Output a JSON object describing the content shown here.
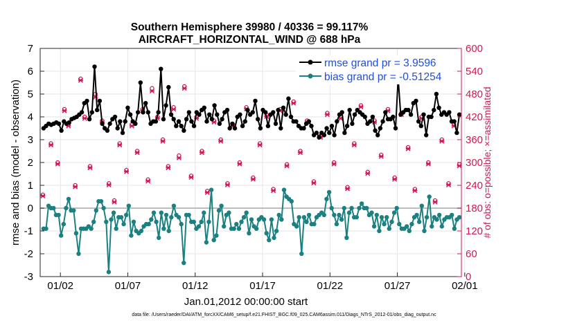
{
  "chart_data": {
    "type": "line",
    "title_line1": "Southern Hemisphere 39980 / 40336 = 99.117%",
    "title_line2": "AIRCRAFT_HORIZONTAL_WIND @ 688 hPa",
    "ylabel_left": "rmse and bias (model - observation)",
    "ylabel_right": "# of obs: o=possible; ×=assimilated",
    "xlabel": "Jan.01,2012 00:00:00 start",
    "footer": "data file: /Users/raeder/DAI/ATM_forcXX/CAM6_setup/f.e21.FHIST_BGC.f09_025.CAM6assim.011/Diags_NTrS_2012-01/obs_diag_output.nc",
    "ylim_left": [
      -3,
      7
    ],
    "yticks_left": [
      "-3",
      "-2",
      "-1",
      "0",
      "1",
      "2",
      "3",
      "4",
      "5",
      "6",
      "7"
    ],
    "ylim_right": [
      0,
      600
    ],
    "yticks_right": [
      "0",
      "60",
      "120",
      "180",
      "240",
      "300",
      "360",
      "420",
      "480",
      "540",
      "600"
    ],
    "xlim": [
      0.5,
      31.75
    ],
    "xticks": [
      {
        "label": "01/02",
        "value": 2
      },
      {
        "label": "01/07",
        "value": 7
      },
      {
        "label": "01/12",
        "value": 12
      },
      {
        "label": "01/17",
        "value": 17
      },
      {
        "label": "01/22",
        "value": 22
      },
      {
        "label": "01/27",
        "value": 27
      },
      {
        "label": "02/01",
        "value": 32
      }
    ],
    "zero_line": 0,
    "series": [
      {
        "name": "rmse grand pr = 3.9596",
        "color": "#000000",
        "marker": "circle",
        "values": [
          3.5,
          3.6,
          3.7,
          3.65,
          3.7,
          3.75,
          3.7,
          3.4,
          3.8,
          3.7,
          3.75,
          3.9,
          3.95,
          4.0,
          4.1,
          4.2,
          4.6,
          4.7,
          3.9,
          4.2,
          6.2,
          4.3,
          4.7,
          3.7,
          3.5,
          3.4,
          3.7,
          3.9,
          4.0,
          3.5,
          3.8,
          3.3,
          3.8,
          4.4,
          4.1,
          3.8,
          3.7,
          4.2,
          5.5,
          4.2,
          4.6,
          4.2,
          3.7,
          3.8,
          3.8,
          4.2,
          6.1,
          3.9,
          4.5,
          5.3,
          4.1,
          3.9,
          3.6,
          3.8,
          3.6,
          3.4,
          3.9,
          4.2,
          3.8,
          3.6,
          4.2,
          4.1,
          4.3,
          4.4,
          3.8,
          4.1,
          3.9,
          4.5,
          4.1,
          3.7,
          3.9,
          4.2,
          4.3,
          3.5,
          3.7,
          3.5,
          4.0,
          4.1,
          3.6,
          3.8,
          4.3,
          4.1,
          4.2,
          4.7,
          3.9,
          3.5,
          4.3,
          4.2,
          3.6,
          4.1,
          4.2,
          3.7,
          4.3,
          3.5,
          4.4,
          4.1,
          4.8,
          4.0,
          3.8,
          3.8,
          3.6,
          3.5,
          3.5,
          3.7,
          3.8,
          3.6,
          3.2,
          3.3,
          3.1,
          3.3,
          3.2,
          3.5,
          3.3,
          3.6,
          3.2,
          3.8,
          4.1,
          4.2,
          3.3,
          3.6,
          4.3,
          3.7,
          4.1,
          4.3,
          4.2,
          4.1,
          4.0,
          3.7,
          3.8,
          4.0,
          3.4,
          3.2,
          3.5,
          3.8,
          4.2,
          3.9,
          3.9,
          4.0,
          3.5,
          5.7,
          4.1,
          4.2,
          4.3,
          4.3,
          4.1,
          4.6,
          4.7,
          3.8,
          3.6,
          4.1,
          3.2,
          4.0,
          4.0,
          4.3,
          5.0,
          4.4,
          4.1,
          4.2,
          4.1,
          4.2,
          3.8,
          3.8,
          3.3,
          4.1
        ]
      },
      {
        "name": "bias grand pr = -0.51254",
        "color": "#1a8080",
        "marker": "circle",
        "values": [
          -0.9,
          -0.9,
          0.1,
          0.0,
          0.0,
          -0.3,
          -0.3,
          -1.2,
          -0.7,
          0.0,
          0.4,
          -0.1,
          -0.1,
          -1.1,
          -2.0,
          -0.9,
          -0.9,
          -0.9,
          -0.8,
          -0.9,
          -0.6,
          -0.1,
          0.3,
          0.3,
          0.0,
          -0.6,
          -2.8,
          -0.5,
          -0.2,
          -0.9,
          -0.4,
          -0.4,
          -0.7,
          -0.3,
          0.1,
          -1.2,
          -0.6,
          -1.0,
          -1.1,
          -1.0,
          -0.8,
          -0.7,
          -0.7,
          -0.5,
          -0.2,
          -0.6,
          -1.3,
          -0.2,
          -0.9,
          -0.3,
          -1.0,
          -0.4,
          0.1,
          -0.3,
          -0.4,
          -0.7,
          -2.4,
          -0.3,
          -0.3,
          -0.6,
          -0.6,
          -0.9,
          -0.8,
          -0.6,
          -0.2,
          -1.5,
          -0.6,
          0.8,
          -1.4,
          -1.2,
          -0.1,
          0.1,
          -0.8,
          -0.3,
          -0.2,
          -0.9,
          -0.9,
          -0.7,
          -0.9,
          -0.6,
          -0.4,
          -0.2,
          -1.1,
          -0.5,
          -0.8,
          -0.9,
          -0.5,
          -0.4,
          -0.5,
          -1.1,
          -1.4,
          -0.5,
          -1.3,
          -1.0,
          -0.3,
          -0.5,
          0.8,
          0.5,
          0.4,
          0.3,
          -0.7,
          -0.8,
          -0.4,
          -2.0,
          -0.4,
          -0.6,
          -0.3,
          -0.7,
          -0.7,
          -0.4,
          -0.3,
          -0.2,
          -0.3,
          0.4,
          0.7,
          0.0,
          -0.3,
          -0.7,
          -0.3,
          -0.5,
          0.0,
          -1.3,
          -0.2,
          0.0,
          -0.4,
          -0.4,
          0.0,
          0.2,
          0.0,
          0.0,
          -0.3,
          -0.2,
          -0.8,
          -0.3,
          -1.0,
          -0.4,
          -0.7,
          -0.4,
          -0.9,
          -0.6,
          -0.2,
          0.0,
          -0.7,
          -0.9,
          -0.9,
          -0.8,
          -1.0,
          -0.7,
          -0.4,
          -0.3,
          -0.6,
          0.1,
          -1.0,
          -0.4,
          0.5,
          -0.8,
          -0.4,
          -0.5,
          -0.3,
          -0.8,
          -0.5,
          -0.4,
          -0.4,
          -0.3,
          -0.9,
          -0.5,
          -0.4
        ]
      }
    ],
    "obs_possible": [
      {
        "x": 0.7,
        "y": 215
      },
      {
        "x": 1.3,
        "y": 350
      },
      {
        "x": 1.8,
        "y": 300
      },
      {
        "x": 2.3,
        "y": 440
      },
      {
        "x": 2.6,
        "y": 400
      },
      {
        "x": 3.1,
        "y": 240
      },
      {
        "x": 3.5,
        "y": 520
      },
      {
        "x": 3.8,
        "y": 420
      },
      {
        "x": 4.2,
        "y": 290
      },
      {
        "x": 4.6,
        "y": 480
      },
      {
        "x": 5.1,
        "y": 410
      },
      {
        "x": 5.6,
        "y": 245
      },
      {
        "x": 6.0,
        "y": 200
      },
      {
        "x": 6.4,
        "y": 350
      },
      {
        "x": 6.9,
        "y": 280
      },
      {
        "x": 7.3,
        "y": 400
      },
      {
        "x": 7.7,
        "y": 330
      },
      {
        "x": 8.1,
        "y": 440
      },
      {
        "x": 8.5,
        "y": 255
      },
      {
        "x": 8.8,
        "y": 495
      },
      {
        "x": 9.2,
        "y": 420
      },
      {
        "x": 9.6,
        "y": 360
      },
      {
        "x": 10.0,
        "y": 290
      },
      {
        "x": 10.4,
        "y": 445
      },
      {
        "x": 10.8,
        "y": 318
      },
      {
        "x": 11.2,
        "y": 500
      },
      {
        "x": 11.7,
        "y": 265
      },
      {
        "x": 12.1,
        "y": 420
      },
      {
        "x": 12.5,
        "y": 330
      },
      {
        "x": 12.9,
        "y": 225
      },
      {
        "x": 13.4,
        "y": 410
      },
      {
        "x": 13.9,
        "y": 360
      },
      {
        "x": 14.4,
        "y": 245
      },
      {
        "x": 14.8,
        "y": 400
      },
      {
        "x": 15.3,
        "y": 300
      },
      {
        "x": 15.8,
        "y": 445
      },
      {
        "x": 16.3,
        "y": 260
      },
      {
        "x": 16.8,
        "y": 350
      },
      {
        "x": 17.3,
        "y": 425
      },
      {
        "x": 17.8,
        "y": 230
      },
      {
        "x": 18.3,
        "y": 440
      },
      {
        "x": 18.8,
        "y": 295
      },
      {
        "x": 19.3,
        "y": 460
      },
      {
        "x": 19.8,
        "y": 330
      },
      {
        "x": 20.3,
        "y": 410
      },
      {
        "x": 20.8,
        "y": 250
      },
      {
        "x": 21.3,
        "y": 370
      },
      {
        "x": 21.8,
        "y": 430
      },
      {
        "x": 22.3,
        "y": 300
      },
      {
        "x": 22.8,
        "y": 420
      },
      {
        "x": 23.3,
        "y": 235
      },
      {
        "x": 23.8,
        "y": 350
      },
      {
        "x": 24.3,
        "y": 450
      },
      {
        "x": 24.8,
        "y": 275
      },
      {
        "x": 25.3,
        "y": 410
      },
      {
        "x": 25.8,
        "y": 320
      },
      {
        "x": 26.3,
        "y": 440
      },
      {
        "x": 26.8,
        "y": 260
      },
      {
        "x": 27.3,
        "y": 430
      },
      {
        "x": 27.8,
        "y": 340
      },
      {
        "x": 28.3,
        "y": 230
      },
      {
        "x": 28.8,
        "y": 420
      },
      {
        "x": 29.3,
        "y": 300
      },
      {
        "x": 29.8,
        "y": 200
      },
      {
        "x": 30.3,
        "y": 360
      },
      {
        "x": 30.8,
        "y": 245
      },
      {
        "x": 31.2,
        "y": 400
      },
      {
        "x": 31.6,
        "y": 295
      }
    ],
    "obs_assimilated": [
      {
        "x": 0.7,
        "y": 212
      },
      {
        "x": 1.3,
        "y": 346
      },
      {
        "x": 1.8,
        "y": 296
      },
      {
        "x": 2.3,
        "y": 436
      },
      {
        "x": 2.6,
        "y": 396
      },
      {
        "x": 3.1,
        "y": 236
      },
      {
        "x": 3.5,
        "y": 516
      },
      {
        "x": 3.8,
        "y": 416
      },
      {
        "x": 4.2,
        "y": 286
      },
      {
        "x": 4.6,
        "y": 472
      },
      {
        "x": 5.1,
        "y": 406
      },
      {
        "x": 5.6,
        "y": 241
      },
      {
        "x": 6.0,
        "y": 196
      },
      {
        "x": 6.4,
        "y": 346
      },
      {
        "x": 6.9,
        "y": 276
      },
      {
        "x": 7.3,
        "y": 396
      },
      {
        "x": 7.7,
        "y": 326
      },
      {
        "x": 8.1,
        "y": 436
      },
      {
        "x": 8.5,
        "y": 251
      },
      {
        "x": 8.8,
        "y": 488
      },
      {
        "x": 9.2,
        "y": 416
      },
      {
        "x": 9.6,
        "y": 356
      },
      {
        "x": 10.0,
        "y": 286
      },
      {
        "x": 10.4,
        "y": 440
      },
      {
        "x": 10.8,
        "y": 312
      },
      {
        "x": 11.2,
        "y": 495
      },
      {
        "x": 11.7,
        "y": 261
      },
      {
        "x": 12.1,
        "y": 416
      },
      {
        "x": 12.5,
        "y": 326
      },
      {
        "x": 12.9,
        "y": 221
      },
      {
        "x": 13.4,
        "y": 406
      },
      {
        "x": 13.9,
        "y": 356
      },
      {
        "x": 14.4,
        "y": 241
      },
      {
        "x": 14.8,
        "y": 396
      },
      {
        "x": 15.3,
        "y": 296
      },
      {
        "x": 15.8,
        "y": 441
      },
      {
        "x": 16.3,
        "y": 256
      },
      {
        "x": 16.8,
        "y": 346
      },
      {
        "x": 17.3,
        "y": 421
      },
      {
        "x": 17.8,
        "y": 226
      },
      {
        "x": 18.3,
        "y": 436
      },
      {
        "x": 18.8,
        "y": 291
      },
      {
        "x": 19.3,
        "y": 456
      },
      {
        "x": 19.8,
        "y": 326
      },
      {
        "x": 20.3,
        "y": 406
      },
      {
        "x": 20.8,
        "y": 246
      },
      {
        "x": 21.3,
        "y": 366
      },
      {
        "x": 21.8,
        "y": 426
      },
      {
        "x": 22.3,
        "y": 296
      },
      {
        "x": 22.8,
        "y": 416
      },
      {
        "x": 23.3,
        "y": 231
      },
      {
        "x": 23.8,
        "y": 346
      },
      {
        "x": 24.3,
        "y": 446
      },
      {
        "x": 24.8,
        "y": 271
      },
      {
        "x": 25.3,
        "y": 406
      },
      {
        "x": 25.8,
        "y": 316
      },
      {
        "x": 26.3,
        "y": 436
      },
      {
        "x": 26.8,
        "y": 256
      },
      {
        "x": 27.3,
        "y": 426
      },
      {
        "x": 27.8,
        "y": 336
      },
      {
        "x": 28.3,
        "y": 226
      },
      {
        "x": 28.8,
        "y": 416
      },
      {
        "x": 29.3,
        "y": 296
      },
      {
        "x": 29.8,
        "y": 196
      },
      {
        "x": 30.3,
        "y": 356
      },
      {
        "x": 30.8,
        "y": 241
      },
      {
        "x": 31.2,
        "y": 396
      },
      {
        "x": 31.6,
        "y": 291
      }
    ],
    "obs_color": "#d3174f",
    "grid": true,
    "legend_position": "top-right"
  }
}
